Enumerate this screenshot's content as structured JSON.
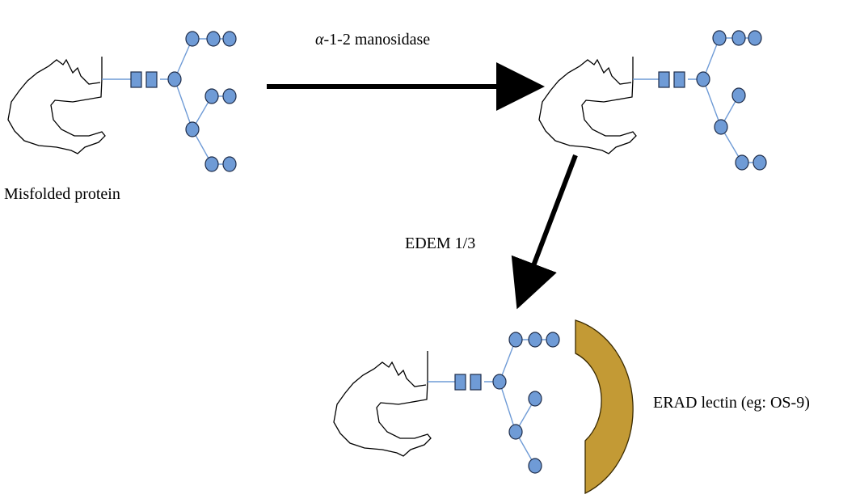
{
  "labels": {
    "misfolded": "Misfolded protein",
    "enzyme1_greek": "α",
    "enzyme1_rest": "-1-2 manosidase",
    "enzyme2": "EDEM 1/3",
    "lectin": "ERAD lectin (eg: OS-9)"
  },
  "colors": {
    "sugar_fill": "#6f9bd6",
    "sugar_stroke": "#1f2d4a",
    "link": "#6f9bd6",
    "arrow": "#000000",
    "lectin_fill": "#c39a35",
    "lectin_stroke": "#3a2a00",
    "protein_stroke": "#000000"
  },
  "glycans": [
    {
      "name": "initial-glycan",
      "mannose_count": 9,
      "square_count": 2
    },
    {
      "name": "trimmed-glycan",
      "mannose_count": 8,
      "square_count": 2
    },
    {
      "name": "edem-glycan",
      "mannose_count": 7,
      "square_count": 2
    }
  ]
}
